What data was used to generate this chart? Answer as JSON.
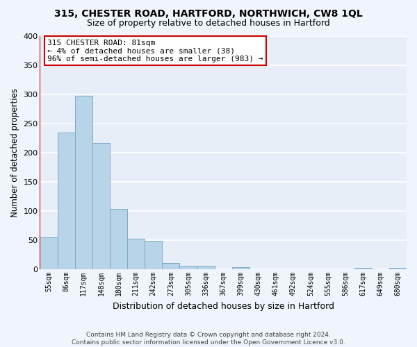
{
  "title": "315, CHESTER ROAD, HARTFORD, NORTHWICH, CW8 1QL",
  "subtitle": "Size of property relative to detached houses in Hartford",
  "xlabel": "Distribution of detached houses by size in Hartford",
  "ylabel": "Number of detached properties",
  "bar_color": "#b8d4e8",
  "bar_edge_color": "#7aaac8",
  "highlight_color": "#cc0000",
  "background_color": "#e8eef8",
  "fig_background_color": "#f0f4fc",
  "grid_color": "#ffffff",
  "categories": [
    "55sqm",
    "86sqm",
    "117sqm",
    "148sqm",
    "180sqm",
    "211sqm",
    "242sqm",
    "273sqm",
    "305sqm",
    "336sqm",
    "367sqm",
    "399sqm",
    "430sqm",
    "461sqm",
    "492sqm",
    "524sqm",
    "555sqm",
    "586sqm",
    "617sqm",
    "649sqm",
    "680sqm"
  ],
  "values": [
    55,
    234,
    297,
    217,
    103,
    52,
    49,
    11,
    6,
    6,
    0,
    4,
    0,
    0,
    0,
    0,
    0,
    0,
    3,
    0,
    3
  ],
  "annotation_title": "315 CHESTER ROAD: 81sqm",
  "annotation_line1": "← 4% of detached houses are smaller (38)",
  "annotation_line2": "96% of semi-detached houses are larger (983) →",
  "footer_line1": "Contains HM Land Registry data © Crown copyright and database right 2024.",
  "footer_line2": "Contains public sector information licensed under the Open Government Licence v3.0.",
  "ylim": [
    0,
    400
  ],
  "yticks": [
    0,
    50,
    100,
    150,
    200,
    250,
    300,
    350,
    400
  ],
  "title_fontsize": 10,
  "subtitle_fontsize": 9,
  "ylabel_fontsize": 8.5,
  "xlabel_fontsize": 9,
  "tick_fontsize": 7,
  "annotation_fontsize": 8,
  "footer_fontsize": 6.5
}
